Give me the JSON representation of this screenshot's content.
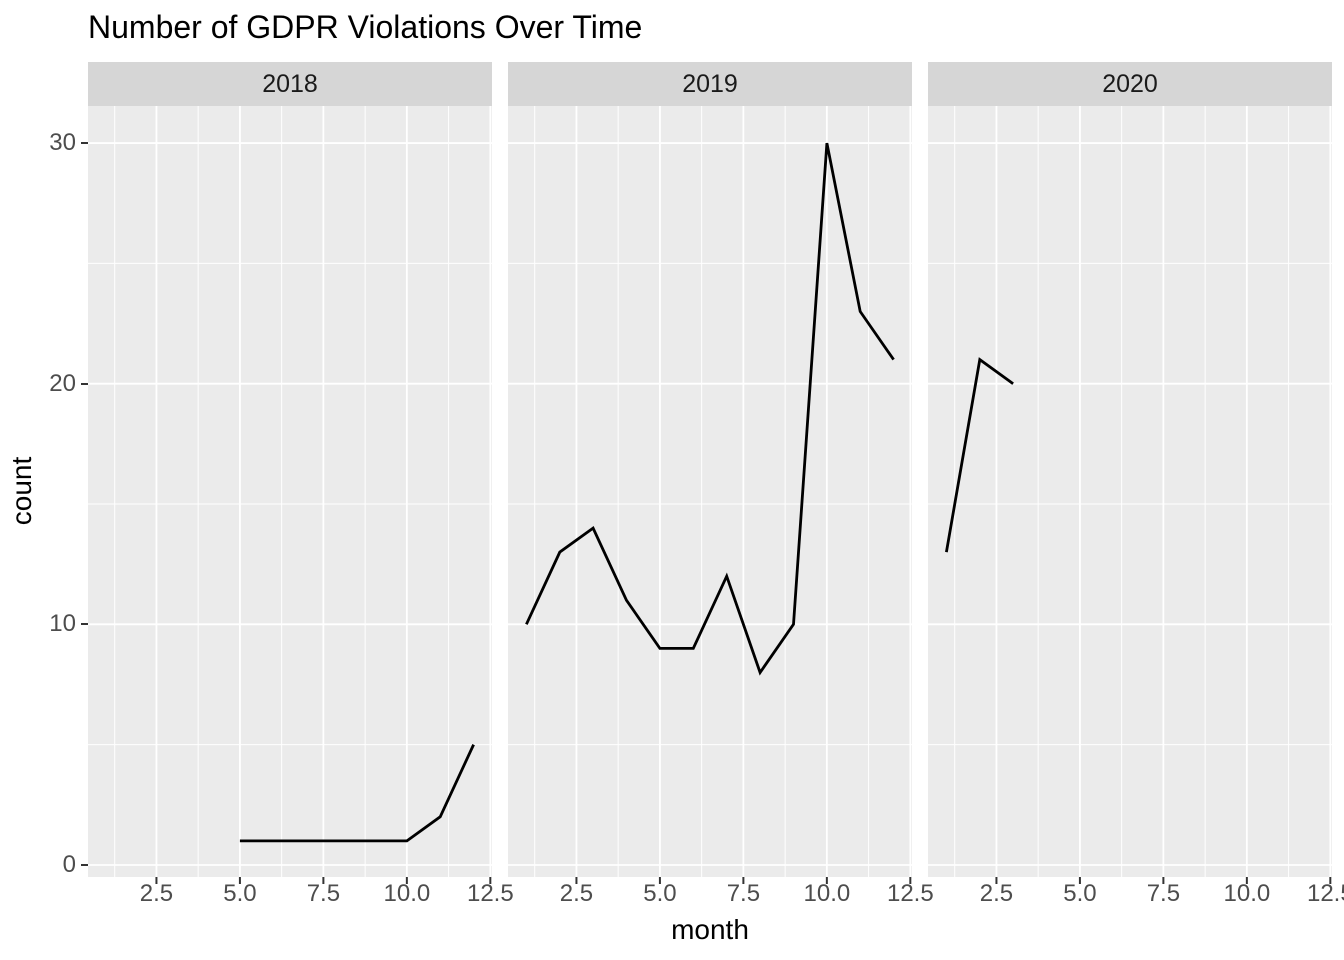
{
  "chart_data": {
    "type": "line",
    "title": "Number of GDPR Violations Over Time",
    "xlabel": "month",
    "ylabel": "count",
    "facet_variable": "year",
    "legend_position": "none",
    "grid": true,
    "x_ticks": [
      2.5,
      5.0,
      7.5,
      10.0,
      12.5
    ],
    "x_tick_labels": [
      "2.5",
      "5.0",
      "7.5",
      "10.0",
      "12.5"
    ],
    "x_minor_ticks": [
      1.25,
      3.75,
      6.25,
      8.75,
      11.25
    ],
    "y_ticks": [
      0,
      10,
      20,
      30
    ],
    "y_tick_labels": [
      "0",
      "10",
      "20",
      "30"
    ],
    "y_minor_ticks": [
      5,
      15,
      25
    ],
    "xlim": [
      0.45,
      12.55
    ],
    "ylim": [
      -0.5,
      31.54
    ],
    "facets": [
      {
        "label": "2018",
        "x": [
          5,
          6,
          7,
          8,
          9,
          10,
          11,
          12
        ],
        "y": [
          1,
          1,
          1,
          1,
          1,
          1,
          2,
          5
        ]
      },
      {
        "label": "2019",
        "x": [
          1,
          2,
          3,
          4,
          5,
          6,
          7,
          8,
          9,
          10,
          11,
          12
        ],
        "y": [
          10,
          13,
          14,
          11,
          9,
          9,
          12,
          8,
          10,
          30,
          23,
          21
        ]
      },
      {
        "label": "2020",
        "x": [
          1,
          2,
          3
        ],
        "y": [
          13,
          21,
          20
        ]
      }
    ]
  },
  "colors": {
    "background": "#FFFFFF",
    "panel_background": "#EBEBEB",
    "strip_background": "#D6D6D6",
    "gridline": "#FFFFFF",
    "series_line": "#000000",
    "axis_tick_mark": "#333333",
    "axis_tick_text": "#4D4D4D",
    "strip_text": "#1A1A1A",
    "title_text": "#000000"
  }
}
